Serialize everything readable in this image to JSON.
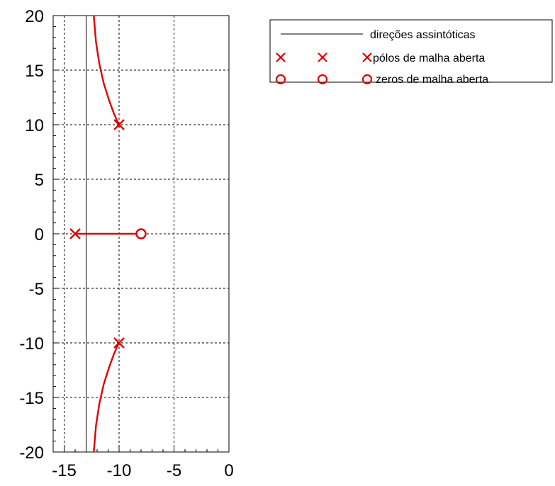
{
  "chart_data": {
    "type": "line",
    "title": "",
    "xlabel": "",
    "ylabel": "",
    "xlim": [
      -16,
      0
    ],
    "ylim": [
      -20,
      20
    ],
    "x_ticks": [
      -15,
      -10,
      -5,
      0
    ],
    "y_ticks": [
      20,
      15,
      10,
      5,
      0,
      -5,
      -10,
      -15,
      -20
    ],
    "grid": true,
    "asymptote_x": -13,
    "poles": [
      [
        -10,
        10
      ],
      [
        -10,
        -10
      ],
      [
        -14,
        0
      ]
    ],
    "zeros": [
      [
        -8,
        0
      ]
    ],
    "branches": [
      {
        "x": [
          -12.3,
          -12.1,
          -11.8,
          -11.4,
          -10.9,
          -10.5,
          -10.2,
          -10.0
        ],
        "y": [
          20,
          17.6,
          15.6,
          13.8,
          12.2,
          11.1,
          10.4,
          10.0
        ]
      },
      {
        "x": [
          -12.3,
          -12.1,
          -11.8,
          -11.4,
          -10.9,
          -10.5,
          -10.2,
          -10.0
        ],
        "y": [
          -20,
          -17.6,
          -15.6,
          -13.8,
          -12.2,
          -11.1,
          -10.4,
          -10.0
        ]
      },
      {
        "x": [
          -14,
          -8
        ],
        "y": [
          0,
          0
        ]
      }
    ],
    "legend": {
      "placement": "top-right",
      "entries": [
        {
          "label": "direções assintóticas",
          "marker": "line"
        },
        {
          "label": "pólos de malha aberta",
          "marker": "x"
        },
        {
          "label": "zeros de malha aberta",
          "marker": "o"
        }
      ]
    },
    "colors": {
      "locus": "#e00000",
      "asymptote": "#000000",
      "grid": "#000000"
    }
  }
}
